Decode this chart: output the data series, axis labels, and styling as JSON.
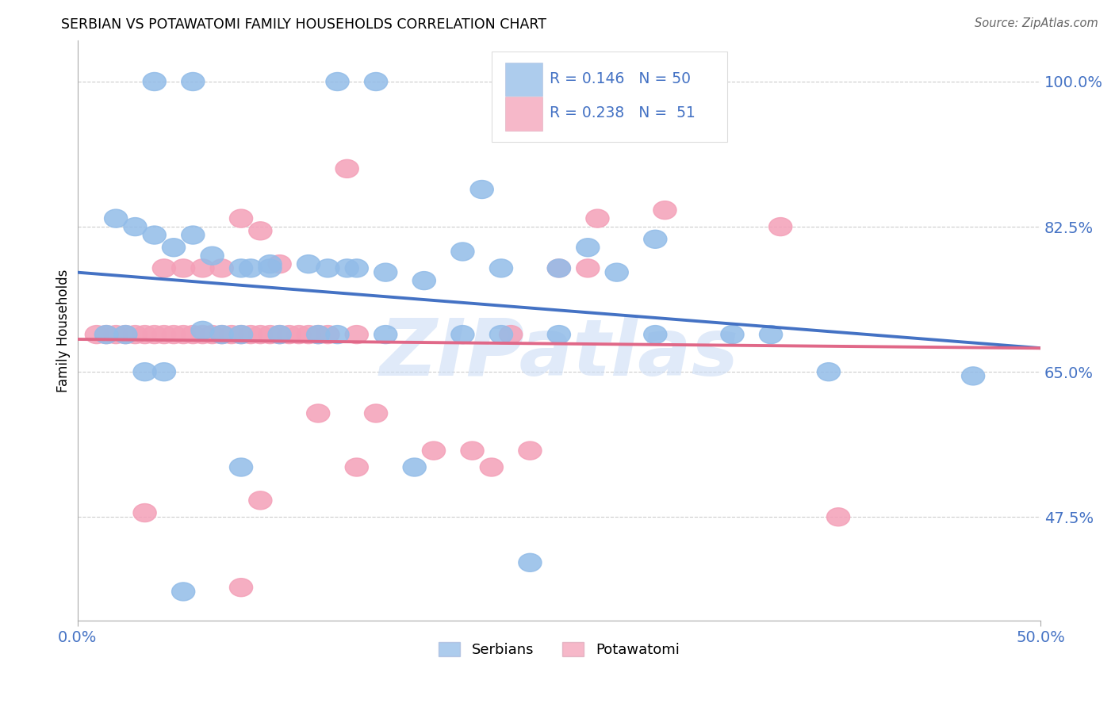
{
  "title": "SERBIAN VS POTAWATOMI FAMILY HOUSEHOLDS CORRELATION CHART",
  "source": "Source: ZipAtlas.com",
  "ylabel": "Family Households",
  "xlim": [
    0.0,
    0.5
  ],
  "ylim": [
    0.35,
    1.05
  ],
  "ytick_vals": [
    0.475,
    0.65,
    0.825,
    1.0
  ],
  "ytick_labels": [
    "47.5%",
    "65.0%",
    "82.5%",
    "100.0%"
  ],
  "xtick_vals": [
    0.0,
    0.5
  ],
  "xtick_labels": [
    "0.0%",
    "50.0%"
  ],
  "R_serbian": 0.146,
  "N_serbian": 50,
  "R_potawatomi": 0.238,
  "N_potawatomi": 51,
  "color_serbian": "#92bce8",
  "color_potawatomi": "#f4a0b8",
  "color_line_serbian": "#4472c4",
  "color_line_potawatomi": "#e06888",
  "color_axis_text": "#4472c4",
  "watermark": "ZIPatlas",
  "watermark_color": "#ccddf5",
  "legend_label_1": "Serbians",
  "legend_label_2": "Potawatomi",
  "serbian_x": [
    0.04,
    0.06,
    0.135,
    0.155,
    0.21,
    0.02,
    0.03,
    0.04,
    0.05,
    0.06,
    0.07,
    0.085,
    0.09,
    0.1,
    0.1,
    0.12,
    0.13,
    0.14,
    0.145,
    0.16,
    0.18,
    0.2,
    0.22,
    0.25,
    0.28,
    0.3,
    0.065,
    0.075,
    0.085,
    0.105,
    0.125,
    0.135,
    0.16,
    0.2,
    0.25,
    0.3,
    0.34,
    0.36,
    0.22,
    0.035,
    0.045,
    0.085,
    0.175,
    0.235,
    0.39,
    0.465,
    0.055,
    0.025,
    0.015,
    0.265
  ],
  "serbian_y": [
    1.0,
    1.0,
    1.0,
    1.0,
    0.87,
    0.835,
    0.825,
    0.815,
    0.8,
    0.815,
    0.79,
    0.775,
    0.775,
    0.775,
    0.78,
    0.78,
    0.775,
    0.775,
    0.775,
    0.77,
    0.76,
    0.795,
    0.775,
    0.775,
    0.77,
    0.81,
    0.7,
    0.695,
    0.695,
    0.695,
    0.695,
    0.695,
    0.695,
    0.695,
    0.695,
    0.695,
    0.695,
    0.695,
    0.695,
    0.65,
    0.65,
    0.535,
    0.535,
    0.42,
    0.65,
    0.645,
    0.385,
    0.695,
    0.695,
    0.8
  ],
  "potawatomi_x": [
    0.01,
    0.015,
    0.02,
    0.025,
    0.03,
    0.035,
    0.04,
    0.045,
    0.05,
    0.055,
    0.06,
    0.065,
    0.07,
    0.075,
    0.08,
    0.085,
    0.09,
    0.095,
    0.1,
    0.105,
    0.11,
    0.115,
    0.12,
    0.125,
    0.13,
    0.14,
    0.27,
    0.085,
    0.095,
    0.105,
    0.25,
    0.265,
    0.305,
    0.045,
    0.055,
    0.065,
    0.075,
    0.365,
    0.395,
    0.125,
    0.155,
    0.185,
    0.205,
    0.235,
    0.145,
    0.215,
    0.035,
    0.095,
    0.085,
    0.145,
    0.225
  ],
  "potawatomi_y": [
    0.695,
    0.695,
    0.695,
    0.695,
    0.695,
    0.695,
    0.695,
    0.695,
    0.695,
    0.695,
    0.695,
    0.695,
    0.695,
    0.695,
    0.695,
    0.695,
    0.695,
    0.695,
    0.695,
    0.695,
    0.695,
    0.695,
    0.695,
    0.695,
    0.695,
    0.895,
    0.835,
    0.835,
    0.82,
    0.78,
    0.775,
    0.775,
    0.845,
    0.775,
    0.775,
    0.775,
    0.775,
    0.825,
    0.475,
    0.6,
    0.6,
    0.555,
    0.555,
    0.555,
    0.535,
    0.535,
    0.48,
    0.495,
    0.39,
    0.695,
    0.695
  ]
}
